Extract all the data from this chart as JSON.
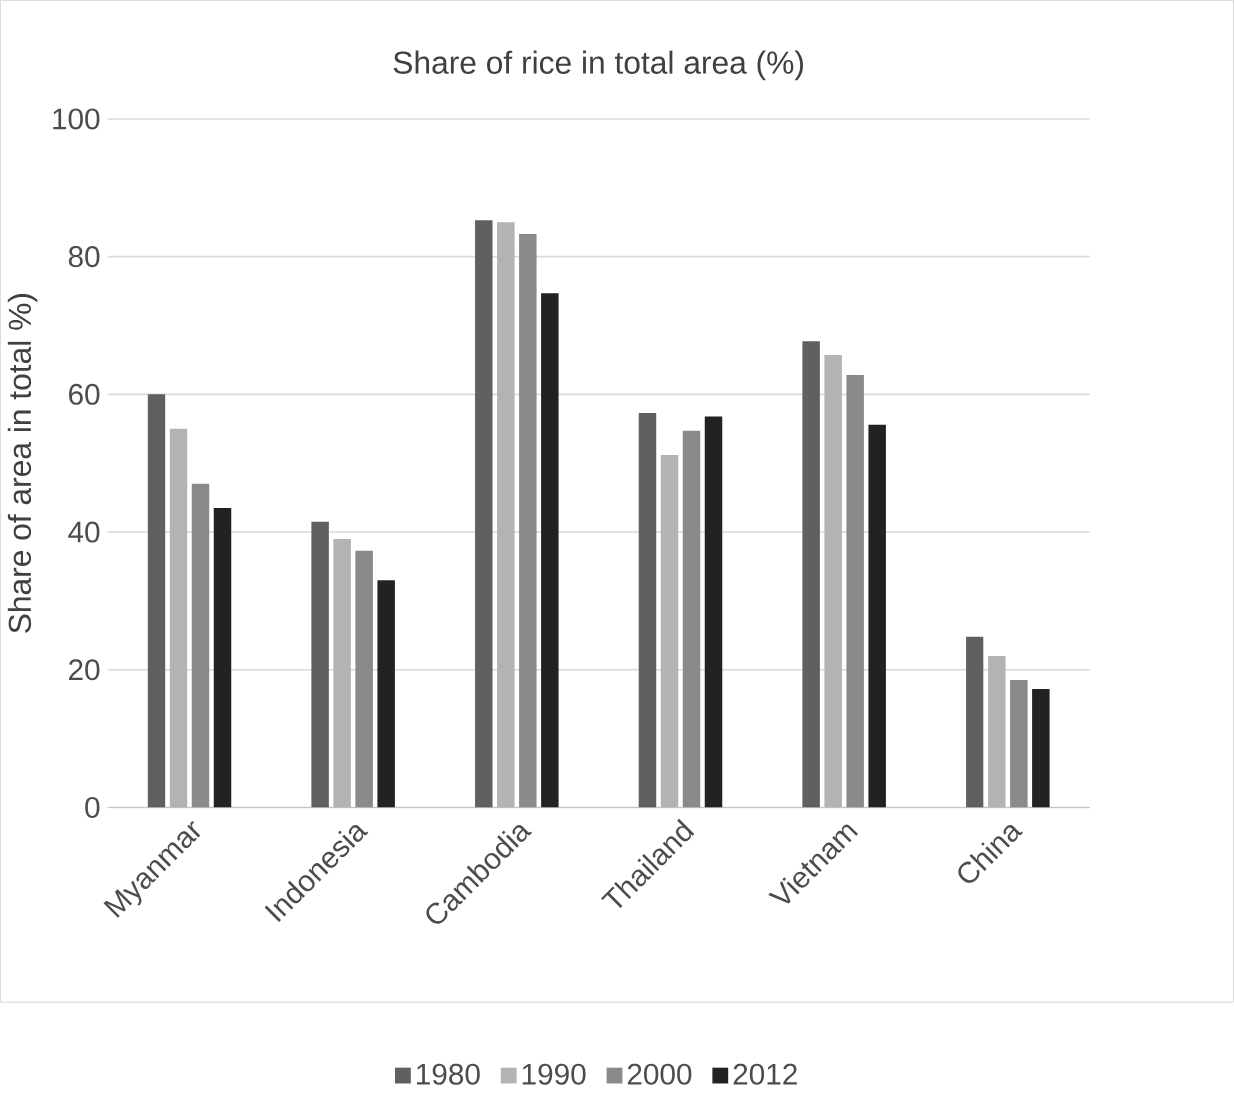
{
  "chart_data": {
    "type": "bar",
    "title": "Share of rice in total area (%)",
    "ylabel": "Share of area in total %)",
    "categories": [
      "Myanmar",
      "Indonesia",
      "Cambodia",
      "Thailand",
      "Vietnam",
      "China"
    ],
    "series": [
      {
        "name": "1980",
        "color": "#606060",
        "values": [
          60,
          41.5,
          85.3,
          57.3,
          67.7,
          24.8
        ]
      },
      {
        "name": "1990",
        "color": "#b3b3b3",
        "values": [
          55,
          39,
          85,
          51.2,
          65.7,
          22
        ]
      },
      {
        "name": "2000",
        "color": "#8a8a8a",
        "values": [
          47,
          37.3,
          83.3,
          54.7,
          62.8,
          18.5
        ]
      },
      {
        "name": "2012",
        "color": "#222222",
        "values": [
          43.5,
          33,
          74.7,
          56.8,
          55.6,
          17.2
        ]
      }
    ],
    "ylim": [
      0,
      100
    ],
    "yticks": [
      0,
      20,
      40,
      60,
      80,
      100
    ],
    "grid": "y",
    "legend": "bottom"
  }
}
